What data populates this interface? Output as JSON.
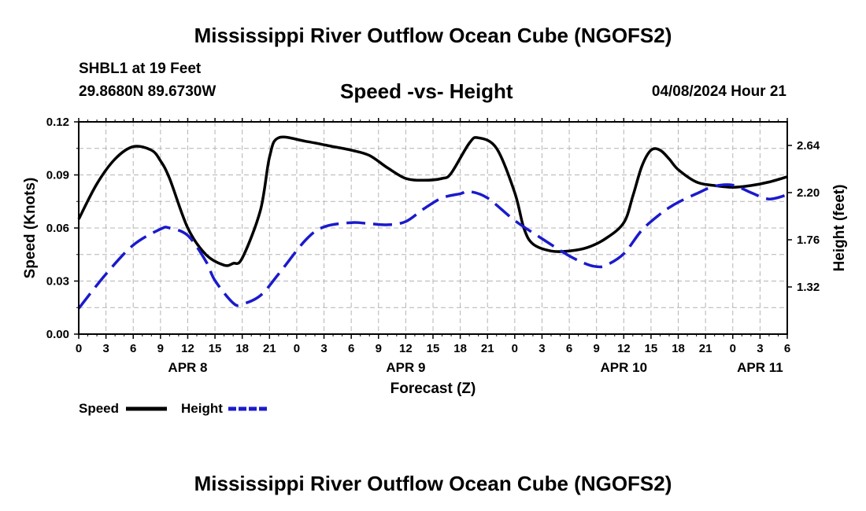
{
  "header": {
    "title": "Mississippi River Outflow Ocean Cube (NGOFS2)",
    "station": "SHBL1 at 19 Feet",
    "coords": "29.8680N  89.6730W",
    "subtitle": "Speed -vs- Height",
    "datetime": "04/08/2024 Hour 21"
  },
  "footer": {
    "title": "Mississippi River Outflow Ocean Cube (NGOFS2)"
  },
  "legend": {
    "speed": "Speed",
    "height": "Height"
  },
  "colors": {
    "speed": "#000000",
    "height": "#1a1acc",
    "grid": "#b4b4b4"
  },
  "chart_data": {
    "type": "line",
    "title": "Speed -vs- Height",
    "xlabel": "Forecast (Z)",
    "ylabel": "Speed (Knots)",
    "ylabel_right": "Height (feet)",
    "xlim": [
      0,
      78
    ],
    "ylim": [
      0,
      0.12
    ],
    "ylim_right": [
      0.88,
      2.86
    ],
    "x_ticks": [
      0,
      3,
      6,
      9,
      12,
      15,
      18,
      21,
      24,
      27,
      30,
      33,
      36,
      39,
      42,
      45,
      48,
      51,
      54,
      57,
      60,
      63,
      66,
      69,
      72,
      75,
      78
    ],
    "x_tick_labels": [
      "0",
      "3",
      "6",
      "9",
      "12",
      "15",
      "18",
      "21",
      "0",
      "3",
      "6",
      "9",
      "12",
      "15",
      "18",
      "21",
      "0",
      "3",
      "6",
      "9",
      "12",
      "15",
      "18",
      "21",
      "0",
      "3",
      "6"
    ],
    "day_labels": [
      {
        "x": 12,
        "label": "APR 8"
      },
      {
        "x": 36,
        "label": "APR 9"
      },
      {
        "x": 60,
        "label": "APR 10"
      },
      {
        "x": 75,
        "label": "APR 11"
      }
    ],
    "y_ticks": [
      0,
      0.03,
      0.06,
      0.09,
      0.12
    ],
    "y_tick_labels": [
      "0.00",
      "0.03",
      "0.06",
      "0.09",
      "0.12"
    ],
    "y_ticks_right": [
      1.32,
      1.76,
      2.2,
      2.64
    ],
    "y_tick_labels_right": [
      "1.32",
      "1.76",
      "2.20",
      "2.64"
    ],
    "grid": true,
    "series": [
      {
        "name": "Speed",
        "axis": "left",
        "style": "solid",
        "x": [
          0,
          2,
          4,
          6,
          8,
          9,
          10,
          12,
          14,
          16,
          17,
          18,
          20,
          21,
          22,
          25,
          28,
          30,
          32,
          34,
          36,
          38,
          40,
          41,
          43,
          44,
          46,
          48,
          49,
          50,
          52,
          54,
          56,
          58,
          60,
          61,
          62,
          63,
          64,
          65,
          66,
          68,
          70,
          72,
          74,
          76,
          78
        ],
        "y": [
          0.065,
          0.085,
          0.099,
          0.106,
          0.104,
          0.098,
          0.088,
          0.06,
          0.045,
          0.039,
          0.04,
          0.043,
          0.07,
          0.1,
          0.111,
          0.109,
          0.106,
          0.104,
          0.101,
          0.094,
          0.088,
          0.087,
          0.088,
          0.091,
          0.108,
          0.111,
          0.105,
          0.08,
          0.06,
          0.051,
          0.047,
          0.047,
          0.049,
          0.054,
          0.063,
          0.078,
          0.095,
          0.104,
          0.104,
          0.099,
          0.093,
          0.086,
          0.084,
          0.083,
          0.084,
          0.086,
          0.089
        ]
      },
      {
        "name": "Height",
        "axis": "right",
        "style": "dashed",
        "x": [
          0,
          3,
          6,
          9,
          10,
          12,
          14,
          15,
          17,
          18,
          20,
          22,
          25,
          27,
          30,
          32,
          34,
          36,
          38,
          40,
          42,
          43,
          45,
          48,
          51,
          54,
          56,
          57,
          58,
          60,
          62,
          64,
          65,
          66,
          68,
          70,
          72,
          74,
          76,
          78
        ],
        "y": [
          1.12,
          1.44,
          1.71,
          1.86,
          1.87,
          1.8,
          1.56,
          1.38,
          1.17,
          1.16,
          1.24,
          1.44,
          1.76,
          1.88,
          1.92,
          1.91,
          1.9,
          1.93,
          2.05,
          2.15,
          2.19,
          2.21,
          2.15,
          1.94,
          1.77,
          1.61,
          1.53,
          1.51,
          1.52,
          1.63,
          1.85,
          2.0,
          2.06,
          2.11,
          2.19,
          2.26,
          2.27,
          2.2,
          2.14,
          2.18
        ]
      }
    ]
  }
}
